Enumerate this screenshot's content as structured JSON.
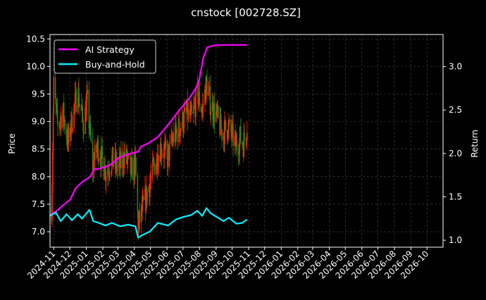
{
  "colors": {
    "background": "#000000",
    "grid": "#4a4a4a",
    "axis": "#ffffff",
    "strategy": "#ff00ff",
    "buyhold": "#00f0ff",
    "candle_up": "#ff2a00",
    "candle_down": "#1e8a1e",
    "legend_border": "#cccccc"
  },
  "chart_data": {
    "type": "line",
    "title": "cnstock [002728.SZ]",
    "ylabel_left": "Price",
    "ylabel_right": "Return",
    "xlabel": "",
    "grid": true,
    "legend_position": "top-left",
    "x_range": [
      "2024-10-25",
      "2026-10-31"
    ],
    "y_left_range": [
      6.72,
      10.58
    ],
    "y_right_range": [
      0.92,
      3.37
    ],
    "x_ticks": [
      "2024-11",
      "2024-12",
      "2025-01",
      "2025-02",
      "2025-03",
      "2025-04",
      "2025-05",
      "2025-06",
      "2025-07",
      "2025-08",
      "2025-09",
      "2025-10",
      "2025-11",
      "2025-12",
      "2026-01",
      "2026-02",
      "2026-03",
      "2026-04",
      "2026-05",
      "2026-06",
      "2026-07",
      "2026-08",
      "2026-09",
      "2026-10"
    ],
    "y_left_ticks": [
      "7.0",
      "7.5",
      "8.0",
      "8.5",
      "9.0",
      "9.5",
      "10.0",
      "10.5"
    ],
    "y_right_ticks": [
      "1.0",
      "1.5",
      "2.0",
      "2.5",
      "3.0"
    ],
    "price_anchors": [
      [
        "2024-10-28",
        7.45
      ],
      [
        "2024-11-01",
        9.65
      ],
      [
        "2024-11-08",
        8.9
      ],
      [
        "2024-11-18",
        9.2
      ],
      [
        "2024-11-28",
        8.6
      ],
      [
        "2024-12-06",
        9.1
      ],
      [
        "2024-12-16",
        9.55
      ],
      [
        "2024-12-26",
        8.95
      ],
      [
        "2025-01-03",
        9.35
      ],
      [
        "2025-01-13",
        8.2
      ],
      [
        "2025-01-22",
        8.55
      ],
      [
        "2025-02-06",
        8.1
      ],
      [
        "2025-02-18",
        8.3
      ],
      [
        "2025-03-03",
        8.15
      ],
      [
        "2025-03-14",
        8.4
      ],
      [
        "2025-03-25",
        8.1
      ],
      [
        "2025-04-03",
        8.2
      ],
      [
        "2025-04-08",
        7.1
      ],
      [
        "2025-04-16",
        7.4
      ],
      [
        "2025-04-25",
        7.7
      ],
      [
        "2025-05-08",
        8.2
      ],
      [
        "2025-05-20",
        8.55
      ],
      [
        "2025-06-02",
        8.35
      ],
      [
        "2025-06-13",
        8.7
      ],
      [
        "2025-06-25",
        8.9
      ],
      [
        "2025-07-08",
        9.15
      ],
      [
        "2025-07-18",
        9.05
      ],
      [
        "2025-07-28",
        9.5
      ],
      [
        "2025-08-06",
        9.2
      ],
      [
        "2025-08-14",
        9.7
      ],
      [
        "2025-08-22",
        9.3
      ],
      [
        "2025-09-02",
        9.1
      ],
      [
        "2025-09-12",
        8.8
      ],
      [
        "2025-09-24",
        8.9
      ],
      [
        "2025-10-09",
        8.55
      ],
      [
        "2025-10-16",
        8.7
      ],
      [
        "2025-10-22",
        8.6
      ],
      [
        "2025-10-29",
        8.95
      ]
    ],
    "series": [
      {
        "name": "AI Strategy",
        "axis": "right",
        "points": [
          [
            "2024-10-25",
            1.29
          ],
          [
            "2024-11-05",
            1.33
          ],
          [
            "2024-11-18",
            1.4
          ],
          [
            "2024-12-02",
            1.47
          ],
          [
            "2024-12-12",
            1.6
          ],
          [
            "2024-12-26",
            1.68
          ],
          [
            "2025-01-08",
            1.73
          ],
          [
            "2025-01-16",
            1.82
          ],
          [
            "2025-01-23",
            1.82
          ],
          [
            "2025-02-13",
            1.86
          ],
          [
            "2025-03-03",
            1.95
          ],
          [
            "2025-03-25",
            2.0
          ],
          [
            "2025-04-08",
            2.02
          ],
          [
            "2025-04-14",
            2.08
          ],
          [
            "2025-04-28",
            2.12
          ],
          [
            "2025-05-15",
            2.19
          ],
          [
            "2025-06-03",
            2.33
          ],
          [
            "2025-06-18",
            2.45
          ],
          [
            "2025-06-27",
            2.52
          ],
          [
            "2025-07-11",
            2.62
          ],
          [
            "2025-07-22",
            2.72
          ],
          [
            "2025-07-30",
            2.8
          ],
          [
            "2025-08-08",
            3.1
          ],
          [
            "2025-08-13",
            3.18
          ],
          [
            "2025-08-15",
            3.22
          ],
          [
            "2025-08-25",
            3.24
          ],
          [
            "2025-09-05",
            3.25
          ],
          [
            "2025-10-29",
            3.25
          ]
        ]
      },
      {
        "name": "Buy-and-Hold",
        "axis": "right",
        "points": [
          [
            "2024-10-25",
            1.28
          ],
          [
            "2024-11-05",
            1.32
          ],
          [
            "2024-11-14",
            1.22
          ],
          [
            "2024-11-25",
            1.3
          ],
          [
            "2024-12-05",
            1.23
          ],
          [
            "2024-12-16",
            1.3
          ],
          [
            "2024-12-24",
            1.25
          ],
          [
            "2025-01-07",
            1.35
          ],
          [
            "2025-01-14",
            1.22
          ],
          [
            "2025-01-24",
            1.2
          ],
          [
            "2025-02-06",
            1.17
          ],
          [
            "2025-02-18",
            1.2
          ],
          [
            "2025-03-05",
            1.16
          ],
          [
            "2025-03-20",
            1.18
          ],
          [
            "2025-04-03",
            1.16
          ],
          [
            "2025-04-08",
            1.03
          ],
          [
            "2025-04-16",
            1.06
          ],
          [
            "2025-04-30",
            1.1
          ],
          [
            "2025-05-15",
            1.2
          ],
          [
            "2025-06-03",
            1.17
          ],
          [
            "2025-06-18",
            1.24
          ],
          [
            "2025-07-02",
            1.27
          ],
          [
            "2025-07-16",
            1.29
          ],
          [
            "2025-07-28",
            1.34
          ],
          [
            "2025-08-06",
            1.28
          ],
          [
            "2025-08-14",
            1.37
          ],
          [
            "2025-08-22",
            1.31
          ],
          [
            "2025-09-02",
            1.27
          ],
          [
            "2025-09-15",
            1.22
          ],
          [
            "2025-09-25",
            1.26
          ],
          [
            "2025-10-09",
            1.19
          ],
          [
            "2025-10-20",
            1.2
          ],
          [
            "2025-10-29",
            1.24
          ]
        ]
      }
    ]
  }
}
